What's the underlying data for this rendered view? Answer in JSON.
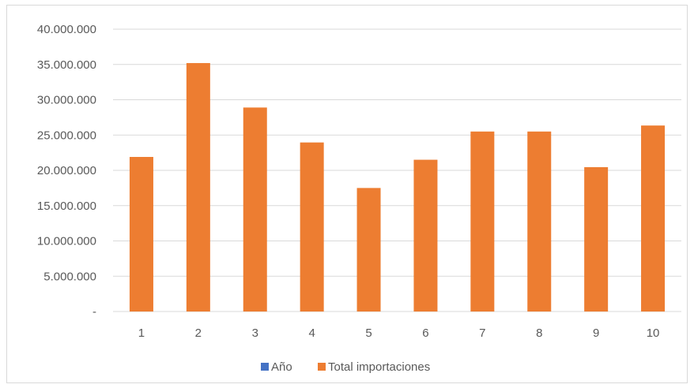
{
  "chart_data": {
    "type": "bar",
    "categories": [
      "1",
      "2",
      "3",
      "4",
      "5",
      "6",
      "7",
      "8",
      "9",
      "10"
    ],
    "series": [
      {
        "name": "Año",
        "color": "#4472c4",
        "values": [
          1,
          2,
          3,
          4,
          5,
          6,
          7,
          8,
          9,
          10
        ]
      },
      {
        "name": "Total importaciones",
        "color": "#ed7d31",
        "values": [
          21900000,
          35200000,
          28900000,
          23950000,
          17500000,
          21500000,
          25500000,
          25500000,
          20450000,
          26350000
        ]
      }
    ],
    "yticks": [
      0,
      5000000,
      10000000,
      15000000,
      20000000,
      25000000,
      30000000,
      35000000,
      40000000
    ],
    "ytick_labels": [
      "-",
      "5.000.000",
      "10.000.000",
      "15.000.000",
      "20.000.000",
      "25.000.000",
      "30.000.000",
      "35.000.000",
      "40.000.000"
    ],
    "ylim": [
      0,
      40000000
    ],
    "title": "",
    "xlabel": "",
    "ylabel": "",
    "grid": true,
    "legend_position": "bottom"
  }
}
